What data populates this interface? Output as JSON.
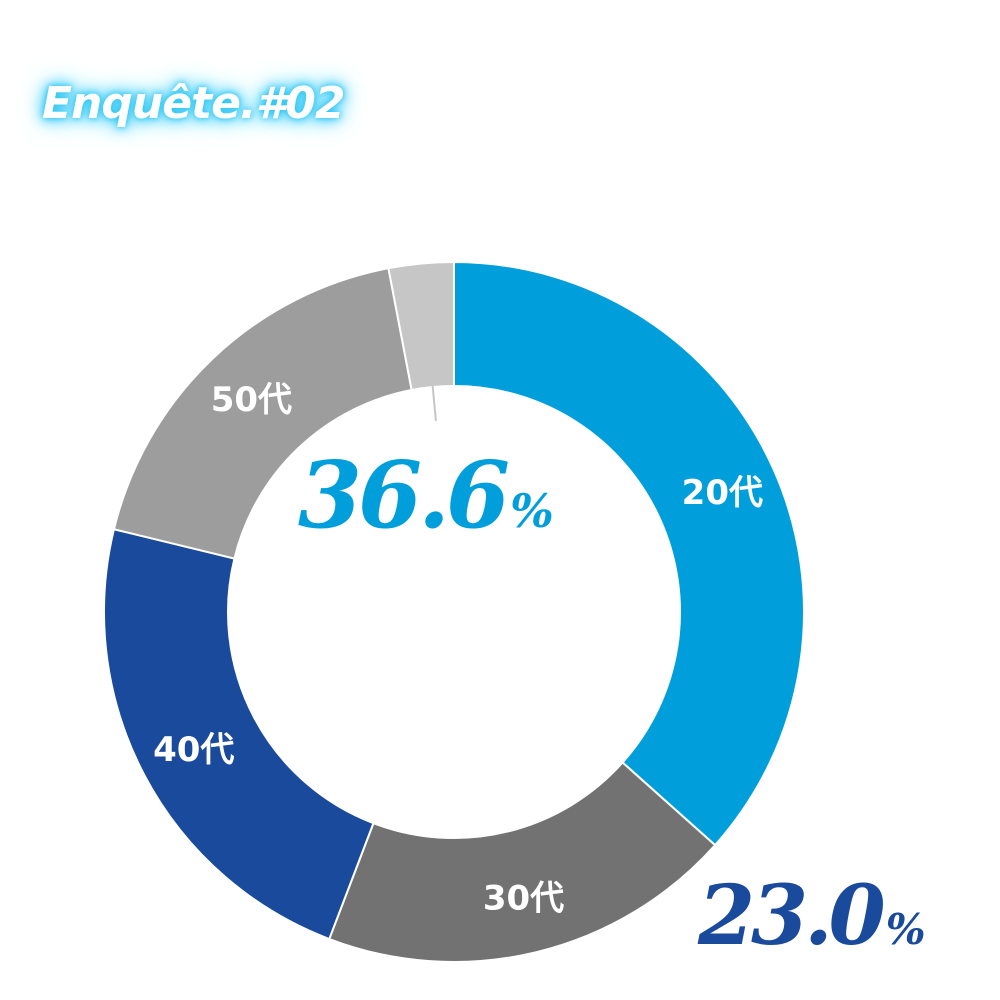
{
  "header": {
    "title": "Enquête.#02"
  },
  "colors": {
    "twenties": "#009fdb",
    "thirties": "#727272",
    "forties": "#1a4a9c",
    "fifties": "#9d9d9d",
    "other": "#c6c6c6",
    "highlight_blue": "#009fdb",
    "highlight_navy": "#1a4a9c"
  },
  "chart_data": {
    "type": "pie",
    "donut": true,
    "categories": [
      "20代",
      "30代",
      "40代",
      "50代",
      ""
    ],
    "values": [
      36.6,
      19.2,
      23.0,
      18.2,
      3.0
    ],
    "series": [
      {
        "name": "20代",
        "value": 36.6,
        "color": "#009fdb"
      },
      {
        "name": "30代",
        "value": 19.2,
        "color": "#727272"
      },
      {
        "name": "40代",
        "value": 23.0,
        "color": "#1a4a9c"
      },
      {
        "name": "50代",
        "value": 18.2,
        "color": "#9d9d9d"
      },
      {
        "name": "",
        "value": 3.0,
        "color": "#c6c6c6"
      }
    ],
    "start_angle_deg": 270,
    "direction": "clockwise",
    "annotations": [
      {
        "for": "20代",
        "text": "36.6",
        "suffix": "%"
      },
      {
        "for": "40代",
        "text": "23.0",
        "suffix": "%"
      }
    ],
    "title": "",
    "legend": "none"
  }
}
